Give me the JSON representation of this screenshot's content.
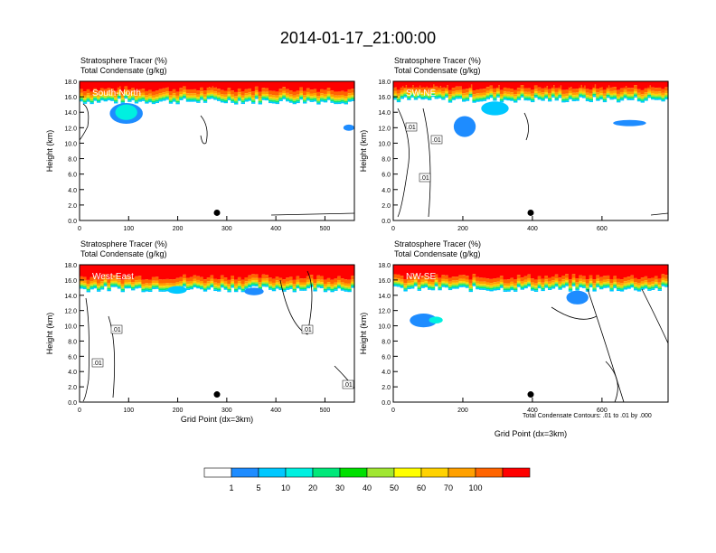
{
  "title": "2014-01-17_21:00:00",
  "colors": {
    "levels": [
      "#ffffff",
      "#1e8cff",
      "#00c8ff",
      "#00f0e0",
      "#00e87a",
      "#00e000",
      "#a0e632",
      "#ffff00",
      "#ffd200",
      "#ffa000",
      "#ff6400",
      "#ff0000"
    ],
    "contour": "#000000",
    "marker": "#000000"
  },
  "footnote": "Total Condensate Contours: .01 to .01 by .000",
  "colorbar": {
    "labels": [
      "1",
      "5",
      "10",
      "20",
      "30",
      "40",
      "50",
      "60",
      "70",
      "100"
    ]
  },
  "chart_data": [
    {
      "type": "heatmap",
      "panel": "South-North",
      "labels": [
        "Stratosphere Tracer   (%)",
        "Total Condensate   (g/kg)"
      ],
      "ylabel": "Height (km)",
      "xlabel": "",
      "xlim": [
        0,
        560
      ],
      "ylim": [
        0,
        18
      ],
      "xticks": [
        "0",
        "100",
        "200",
        "300",
        "400",
        "500"
      ],
      "yticks": [
        "0.0",
        "2.0",
        "4.0",
        "6.0",
        "8.0",
        "10.0",
        "12.0",
        "14.0",
        "16.0",
        "18.0"
      ],
      "marker": {
        "x": 280,
        "y": 1.0
      },
      "contour_labels": [],
      "tracer_base_km": 15.6
    },
    {
      "type": "heatmap",
      "panel": "SW-NE",
      "labels": [
        "Stratosphere Tracer   (%)",
        "Total Condensate   (g/kg)"
      ],
      "ylabel": "Height (km)",
      "xlabel": "",
      "xlim": [
        0,
        790
      ],
      "ylim": [
        0,
        18
      ],
      "xticks": [
        "0",
        "200",
        "400",
        "600"
      ],
      "yticks": [
        "0.0",
        "2.0",
        "4.0",
        "6.0",
        "8.0",
        "10.0",
        "12.0",
        "14.0",
        "16.0",
        "18.0"
      ],
      "marker": {
        "x": 395,
        "y": 1.0
      },
      "contour_labels": [
        ".01",
        ".01",
        ".01"
      ],
      "tracer_base_km": 15.8
    },
    {
      "type": "heatmap",
      "panel": "West-East",
      "labels": [
        "Stratosphere Tracer   (%)",
        "Total Condensate   (g/kg)"
      ],
      "ylabel": "Height (km)",
      "xlabel": "Grid Point (dx=3km)",
      "xlim": [
        0,
        560
      ],
      "ylim": [
        0,
        18
      ],
      "xticks": [
        "0",
        "100",
        "200",
        "300",
        "400",
        "500"
      ],
      "yticks": [
        "0.0",
        "2.0",
        "4.0",
        "6.0",
        "8.0",
        "10.0",
        "12.0",
        "14.0",
        "16.0",
        "18.0"
      ],
      "marker": {
        "x": 280,
        "y": 1.0
      },
      "contour_labels": [
        ".01",
        ".01",
        ".01",
        ".01"
      ],
      "tracer_base_km": 15.0
    },
    {
      "type": "heatmap",
      "panel": "NW-SE",
      "labels": [
        "Stratosphere Tracer   (%)",
        "Total Condensate   (g/kg)"
      ],
      "ylabel": "Height (km)",
      "xlabel": "Grid Point (dx=3km)",
      "xlim": [
        0,
        790
      ],
      "ylim": [
        0,
        18
      ],
      "xticks": [
        "0",
        "200",
        "400",
        "600"
      ],
      "yticks": [
        "0.0",
        "2.0",
        "4.0",
        "6.0",
        "8.0",
        "10.0",
        "12.0",
        "14.0",
        "16.0",
        "18.0"
      ],
      "marker": {
        "x": 395,
        "y": 1.0
      },
      "contour_labels": [],
      "tracer_base_km": 15.0
    }
  ]
}
